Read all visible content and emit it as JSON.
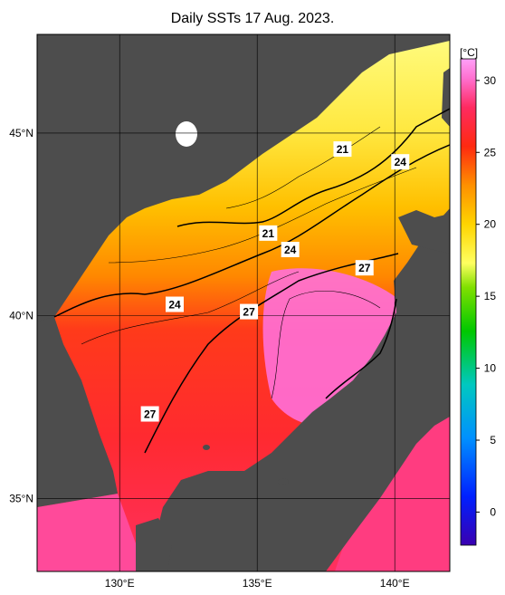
{
  "title": "Daily SSTs 17 Aug. 2023.",
  "map": {
    "lon_range": [
      127,
      142
    ],
    "lat_range": [
      33,
      47.7
    ],
    "lon_ticks": [
      {
        "value": 130,
        "label": "130°E"
      },
      {
        "value": 135,
        "label": "135°E"
      },
      {
        "value": 140,
        "label": "140°E"
      }
    ],
    "lat_ticks": [
      {
        "value": 35,
        "label": "35°N"
      },
      {
        "value": 40,
        "label": "40°N"
      },
      {
        "value": 45,
        "label": "45°N"
      }
    ],
    "land_color": "#4d4d4d",
    "grid_color": "#000000"
  },
  "colorbar": {
    "unit": "[°C]",
    "ticks": [
      "0",
      "5",
      "10",
      "15",
      "20",
      "25",
      "30"
    ],
    "colors": [
      "#3a00b0",
      "#0030ff",
      "#0096ff",
      "#00d0b0",
      "#00c000",
      "#a8e000",
      "#ffff60",
      "#ffd000",
      "#ff9000",
      "#ff3000",
      "#ff2050",
      "#ff60c0",
      "#ff90f0"
    ]
  },
  "contour_labels": [
    {
      "text": "21",
      "lon": 138.1,
      "lat": 44.55
    },
    {
      "text": "24",
      "lon": 140.2,
      "lat": 44.2
    },
    {
      "text": "21",
      "lon": 135.4,
      "lat": 42.25
    },
    {
      "text": "24",
      "lon": 136.2,
      "lat": 41.8
    },
    {
      "text": "27",
      "lon": 138.9,
      "lat": 41.3
    },
    {
      "text": "24",
      "lon": 132.0,
      "lat": 40.3
    },
    {
      "text": "27",
      "lon": 134.7,
      "lat": 40.1
    },
    {
      "text": "27",
      "lon": 131.1,
      "lat": 37.3
    }
  ]
}
